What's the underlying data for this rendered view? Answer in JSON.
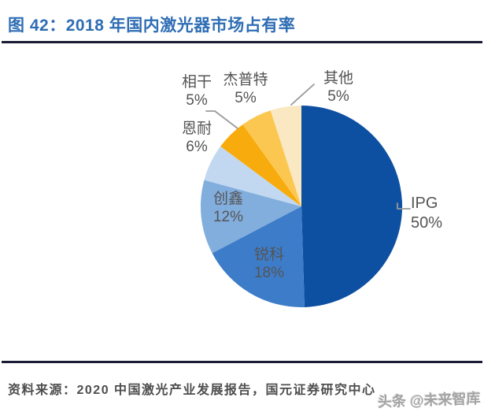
{
  "title": {
    "text": "图 42：2018 年国内激光器市场占有率",
    "color": "#2E6DB4"
  },
  "source": {
    "text": "资料来源：2020 中国激光产业发展报告，国元证券研究中心"
  },
  "watermark": {
    "text": "头条 @未来智库"
  },
  "rules": {
    "color": "#1B1B35"
  },
  "chart_data": {
    "type": "pie",
    "title": "2018 年国内激光器市场占有率",
    "unit": "%",
    "direction": "clockwise",
    "start_angle_deg": 0,
    "legend_position": "outside-labels",
    "label_color": "#545454",
    "slices": [
      {
        "label": "IPG",
        "value": 50,
        "pct": "50%",
        "color": "#0D50A2"
      },
      {
        "label": "锐科",
        "value": 18,
        "pct": "18%",
        "color": "#3D7CC9"
      },
      {
        "label": "创鑫",
        "value": 12,
        "pct": "12%",
        "color": "#82AEDE"
      },
      {
        "label": "恩耐",
        "value": 6,
        "pct": "6%",
        "color": "#C2D8F0"
      },
      {
        "label": "相干",
        "value": 5,
        "pct": "5%",
        "color": "#F8AB0C"
      },
      {
        "label": "杰普特",
        "value": 5,
        "pct": "5%",
        "color": "#FCC751"
      },
      {
        "label": "其他",
        "value": 5,
        "pct": "5%",
        "color": "#F9E8C2"
      }
    ]
  }
}
